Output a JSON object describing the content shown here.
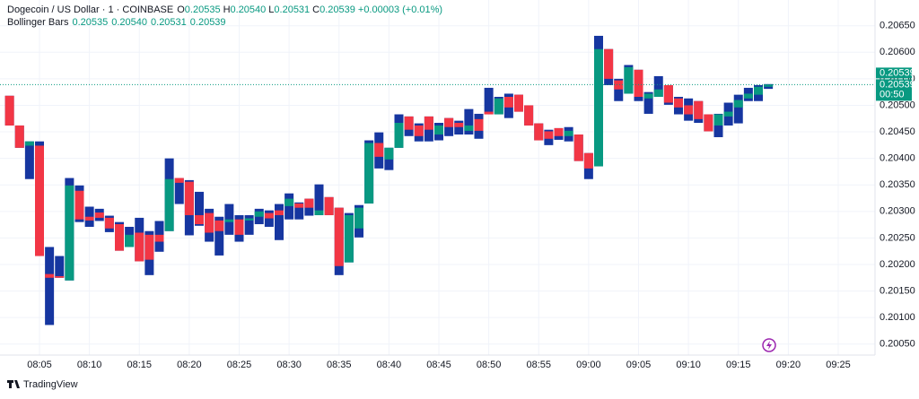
{
  "header": {
    "symbol": "Dogecoin / US Dollar · 1 · COINBASE",
    "o_label": "O",
    "open": "0.20535",
    "h_label": "H",
    "high": "0.20540",
    "l_label": "L",
    "low": "0.20531",
    "c_label": "C",
    "close": "0.20539",
    "change": "+0.00003 (+0.01%)",
    "indicator": "Bollinger Bars",
    "indicator_values": [
      "0.20535",
      "0.20540",
      "0.20531",
      "0.20539"
    ]
  },
  "chart_data": {
    "type": "candlestick",
    "categories": [
      null,
      null,
      null,
      "08:05",
      null,
      null,
      null,
      null,
      "08:10",
      null,
      null,
      null,
      null,
      "08:15",
      null,
      null,
      null,
      null,
      "08:20",
      null,
      null,
      null,
      null,
      "08:25",
      null,
      null,
      null,
      null,
      "08:30",
      null,
      null,
      null,
      null,
      "08:35",
      null,
      null,
      null,
      null,
      "08:40",
      null,
      null,
      null,
      null,
      "08:45",
      null,
      null,
      null,
      null,
      "08:50",
      null,
      null,
      null,
      null,
      "08:55",
      null,
      null,
      null,
      null,
      "09:00",
      null,
      null,
      null,
      null,
      "09:05",
      null,
      null,
      null,
      null,
      "09:10",
      null,
      null,
      null,
      null,
      "09:15",
      null,
      null,
      null,
      null,
      "09:20",
      null,
      null,
      null,
      null,
      "09:25"
    ],
    "open": [
      0.20518,
      0.20462,
      0.20424,
      0.20424,
      0.20182,
      0.20178,
      0.2017,
      0.20339,
      0.2029,
      0.20298,
      0.20288,
      0.20276,
      0.20233,
      0.2026,
      0.20256,
      0.20256,
      0.20263,
      0.20363,
      0.20356,
      0.20293,
      0.20297,
      0.20283,
      0.2028,
      0.20285,
      0.20283,
      0.2029,
      0.20297,
      0.20302,
      0.2031,
      0.20315,
      0.20324,
      0.20293,
      0.20327,
      0.20307,
      0.20204,
      0.20268,
      0.20315,
      0.20429,
      0.20398,
      0.2042,
      0.20479,
      0.20462,
      0.20479,
      0.20445,
      0.20476,
      0.20467,
      0.20452,
      0.20474,
      0.20488,
      0.20483,
      0.20516,
      0.2052,
      0.205,
      0.20466,
      0.20451,
      0.20457,
      0.20442,
      0.20445,
      0.2041,
      0.20385,
      0.20606,
      0.20547,
      0.20522,
      0.20567,
      0.20513,
      0.20516,
      0.20538,
      0.20513,
      0.205,
      0.20508,
      0.20483,
      0.20462,
      0.20479,
      0.20496,
      0.20513,
      0.2052,
      0.20535,
      null,
      null,
      null,
      null,
      null,
      null,
      null
    ],
    "high": [
      0.20518,
      0.20462,
      0.20432,
      0.20432,
      0.20233,
      0.20216,
      0.20363,
      0.20349,
      0.20309,
      0.20305,
      0.20292,
      0.2028,
      0.20271,
      0.20288,
      0.20263,
      0.20282,
      0.204,
      0.20363,
      0.20359,
      0.20337,
      0.20305,
      0.2029,
      0.20314,
      0.20293,
      0.20293,
      0.20305,
      0.20302,
      0.20314,
      0.20334,
      0.20317,
      0.20324,
      0.20351,
      0.20327,
      0.20307,
      0.20297,
      0.20312,
      0.20434,
      0.20449,
      0.2042,
      0.20483,
      0.20479,
      0.20466,
      0.20479,
      0.20467,
      0.20476,
      0.20471,
      0.20493,
      0.20484,
      0.20533,
      0.20516,
      0.20522,
      0.2052,
      0.205,
      0.20466,
      0.20454,
      0.20457,
      0.20459,
      0.20445,
      0.2041,
      0.20631,
      0.20606,
      0.2055,
      0.20576,
      0.20567,
      0.20525,
      0.20555,
      0.20538,
      0.20516,
      0.20513,
      0.20508,
      0.20483,
      0.20484,
      0.20505,
      0.2052,
      0.20533,
      0.20538,
      0.2054,
      null,
      null,
      null,
      null,
      null,
      null,
      null
    ],
    "low": [
      0.20462,
      0.2042,
      0.20361,
      0.20216,
      0.20086,
      0.20175,
      0.2017,
      0.2028,
      0.20271,
      0.20282,
      0.20261,
      0.20226,
      0.20233,
      0.20206,
      0.2018,
      0.20224,
      0.20263,
      0.20314,
      0.20255,
      0.20273,
      0.20243,
      0.20217,
      0.20256,
      0.20243,
      0.20256,
      0.20276,
      0.20271,
      0.20246,
      0.20285,
      0.20285,
      0.20292,
      0.20293,
      0.20293,
      0.2018,
      0.20204,
      0.20251,
      0.20315,
      0.20381,
      0.20378,
      0.2042,
      0.20442,
      0.20432,
      0.20432,
      0.20434,
      0.20442,
      0.20445,
      0.20445,
      0.20437,
      0.20483,
      0.20483,
      0.20476,
      0.20488,
      0.20462,
      0.20434,
      0.20425,
      0.20435,
      0.20432,
      0.20395,
      0.20361,
      0.20385,
      0.20538,
      0.20508,
      0.20522,
      0.20508,
      0.20484,
      0.20516,
      0.20501,
      0.20483,
      0.20471,
      0.20467,
      0.20451,
      0.2044,
      0.20462,
      0.20466,
      0.20508,
      0.20508,
      0.20531,
      null,
      null,
      null,
      null,
      null,
      null,
      null
    ],
    "close": [
      0.20462,
      0.2042,
      0.20432,
      0.20216,
      0.20175,
      0.20175,
      0.20349,
      0.20285,
      0.20283,
      0.20288,
      0.20268,
      0.20226,
      0.20256,
      0.20206,
      0.20209,
      0.20243,
      0.20361,
      0.20354,
      0.20293,
      0.20276,
      0.2026,
      0.20263,
      0.20285,
      0.20256,
      0.20287,
      0.203,
      0.20287,
      0.20293,
      0.20324,
      0.20307,
      0.20307,
      0.20302,
      0.20293,
      0.20197,
      0.20293,
      0.20307,
      0.20429,
      0.20403,
      0.2042,
      0.20467,
      0.20454,
      0.20442,
      0.20454,
      0.20462,
      0.20459,
      0.20459,
      0.20462,
      0.20452,
      0.20483,
      0.20513,
      0.20496,
      0.20488,
      0.20462,
      0.20434,
      0.20437,
      0.20442,
      0.20452,
      0.20395,
      0.20381,
      0.20606,
      0.2055,
      0.2053,
      0.20572,
      0.20516,
      0.20522,
      0.2053,
      0.20505,
      0.20496,
      0.20483,
      0.20474,
      0.20451,
      0.20483,
      0.20488,
      0.2051,
      0.20522,
      0.20535,
      0.20539,
      null,
      null,
      null,
      null,
      null,
      null,
      null
    ],
    "up_color": "#089981",
    "down_color": "#f23645",
    "wick_color": "#1636a0",
    "ylim": [
      0.20031,
      0.20685
    ],
    "yticks": [
      {
        "value": 0.2005,
        "label": "0.20050"
      },
      {
        "value": 0.201,
        "label": "0.20100"
      },
      {
        "value": 0.2015,
        "label": "0.20150"
      },
      {
        "value": 0.202,
        "label": "0.20200"
      },
      {
        "value": 0.2025,
        "label": "0.20250"
      },
      {
        "value": 0.203,
        "label": "0.20300"
      },
      {
        "value": 0.2035,
        "label": "0.20350"
      },
      {
        "value": 0.204,
        "label": "0.20400"
      },
      {
        "value": 0.2045,
        "label": "0.20450"
      },
      {
        "value": 0.205,
        "label": "0.20500"
      },
      {
        "value": 0.2055,
        "label": "0.20550"
      },
      {
        "value": 0.206,
        "label": "0.20600"
      },
      {
        "value": 0.2065,
        "label": "0.20650"
      }
    ],
    "grid": true,
    "indicator_price": {
      "value": 0.20539,
      "label": "0.20539"
    },
    "last_price": {
      "value": 0.20539,
      "label": "0.20539"
    },
    "countdown": "00:50"
  },
  "footer": {
    "brand": "TradingView"
  }
}
